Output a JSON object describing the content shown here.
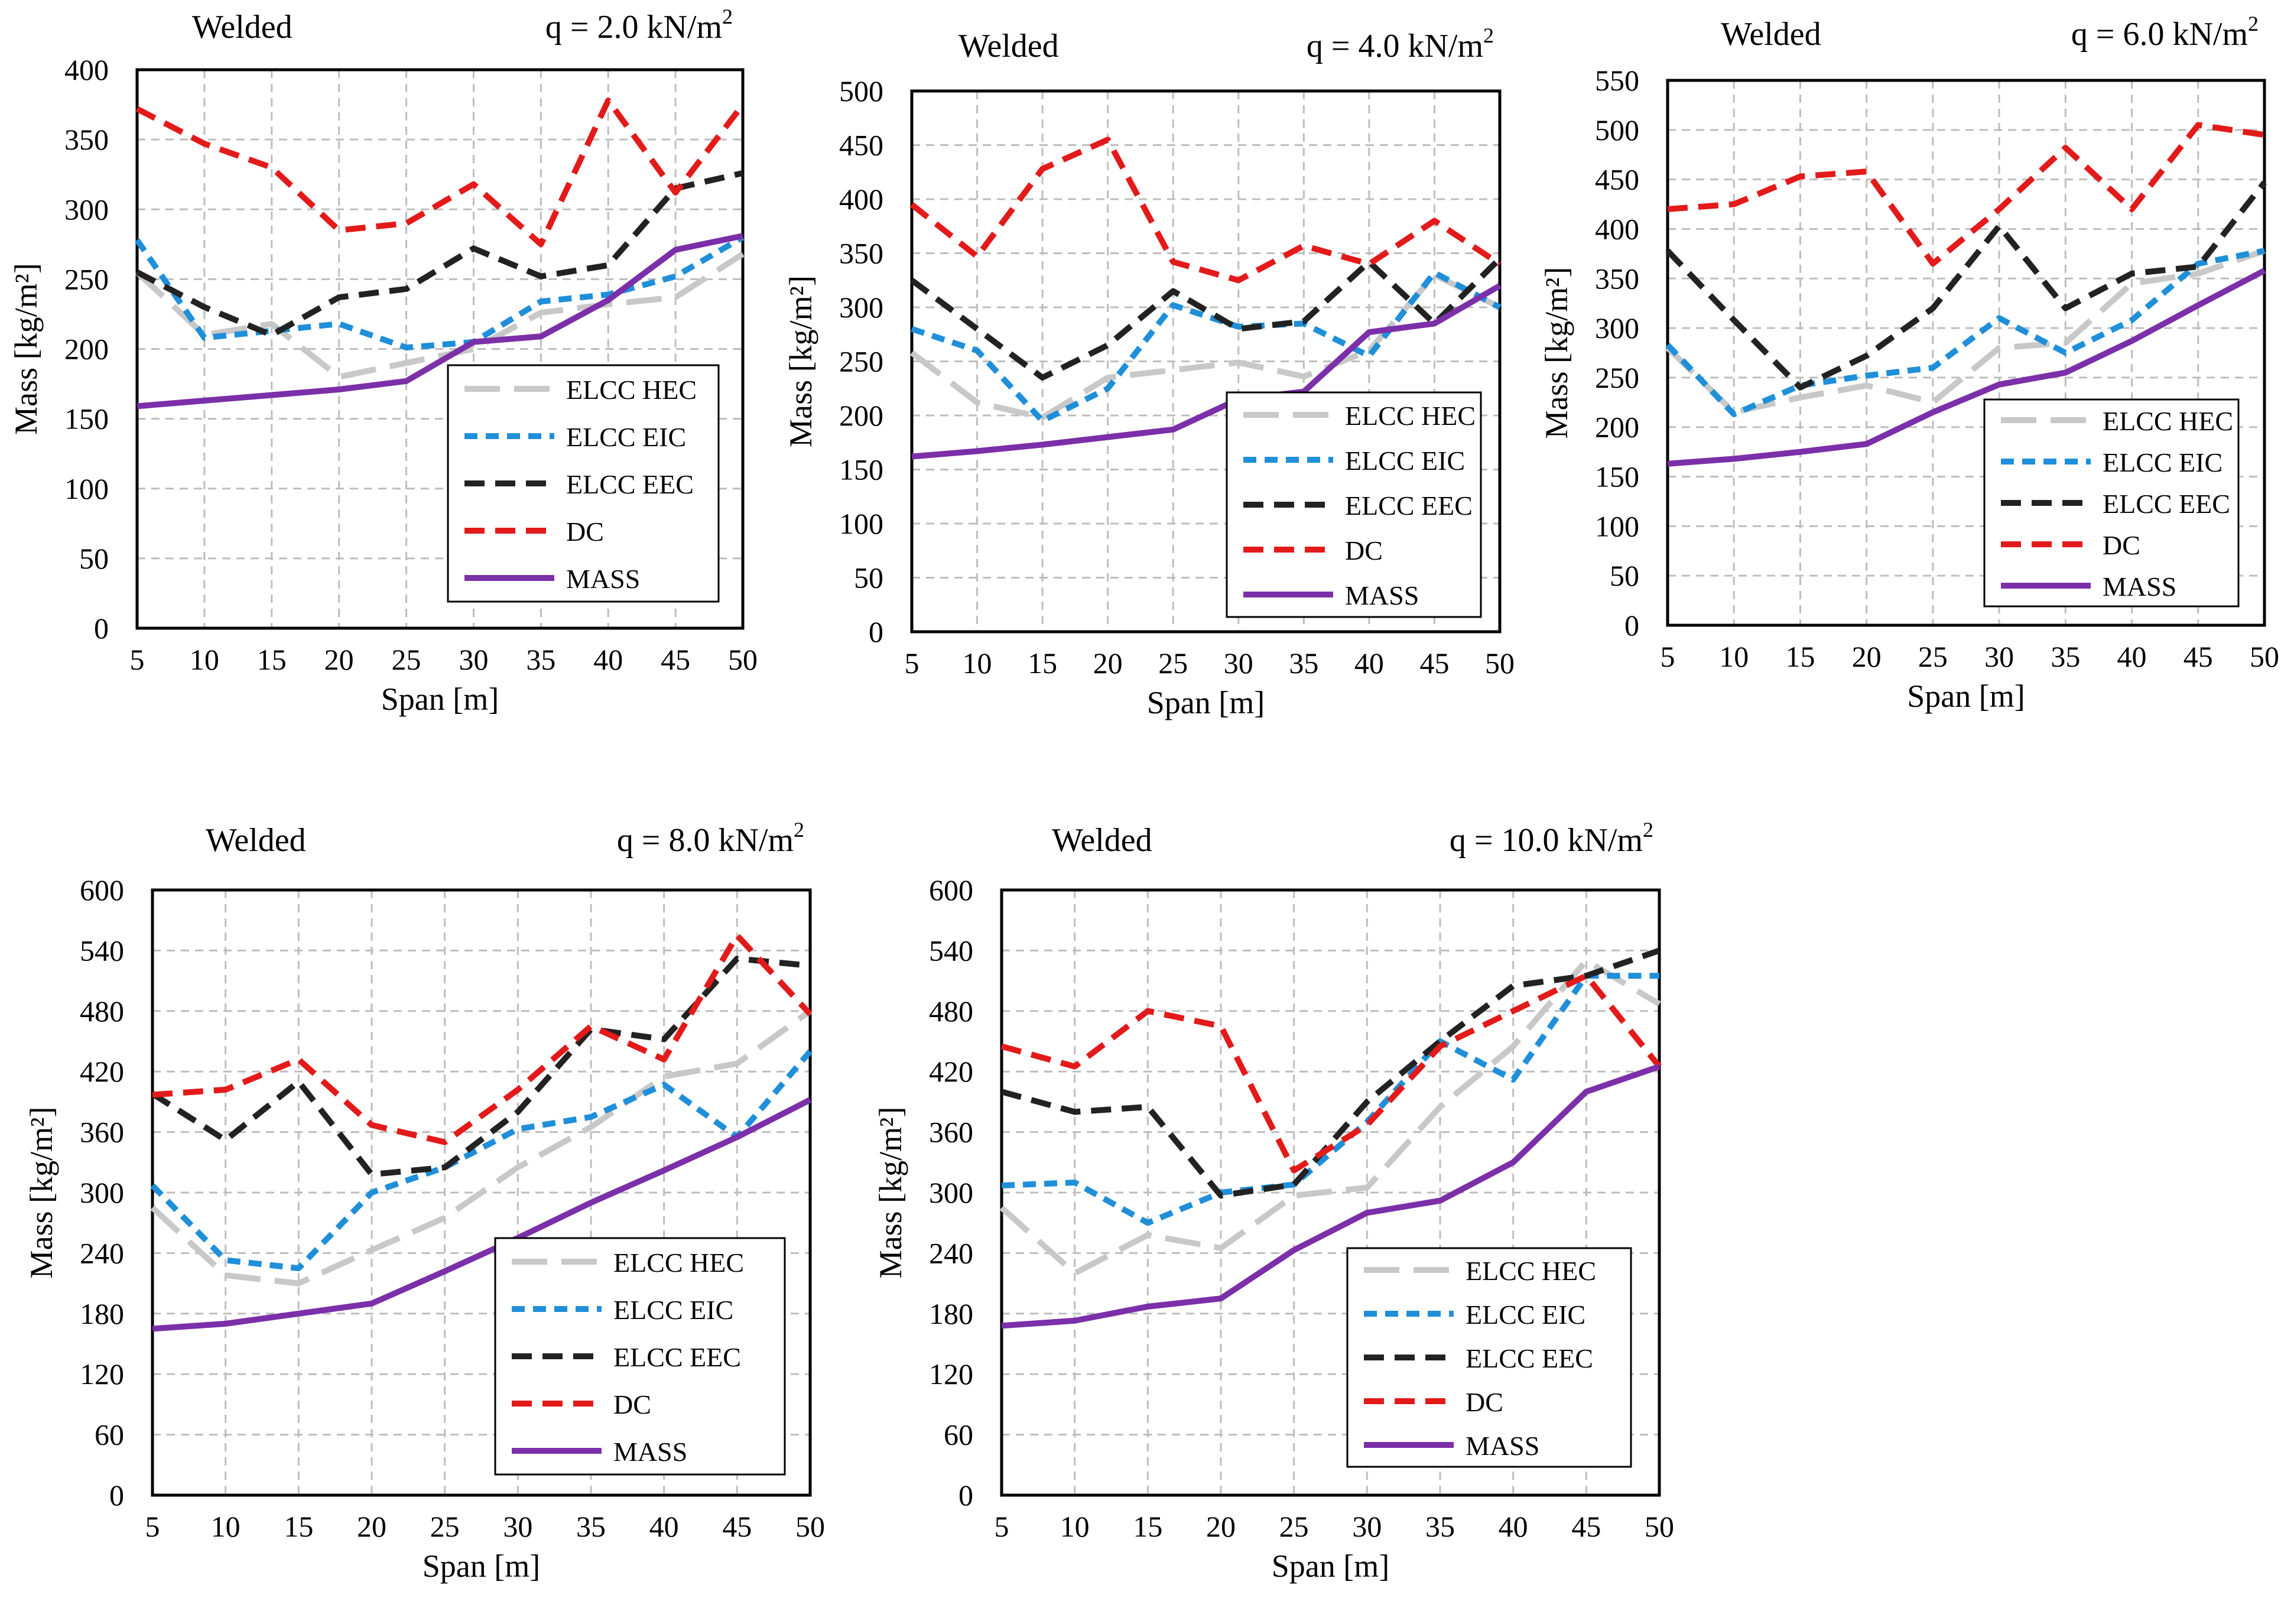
{
  "series_styles": [
    {
      "name": "ELCC HEC",
      "color": "#c8c8c8",
      "dash": "long"
    },
    {
      "name": "ELCC EIC",
      "color": "#1f8fd9",
      "dash": "short"
    },
    {
      "name": "ELCC EEC",
      "color": "#222222",
      "dash": "medium"
    },
    {
      "name": "DC",
      "color": "#e31a1a",
      "dash": "medium"
    },
    {
      "name": "MASS",
      "color": "#7b2fa8",
      "dash": "solid"
    }
  ],
  "chart_data": [
    {
      "type": "line",
      "title": "Welded",
      "load_base": "q = 2.0 kN/m",
      "load_sup": "2",
      "xlabel": "Span [m]",
      "ylabel": "Mass [kg/m²]",
      "xlim": [
        5,
        50
      ],
      "ylim": [
        0,
        400
      ],
      "x_ticks": [
        5,
        10,
        15,
        20,
        25,
        30,
        35,
        40,
        45,
        50
      ],
      "y_ticks": [
        0,
        50,
        100,
        150,
        200,
        250,
        300,
        350,
        400
      ],
      "x": [
        5,
        10,
        15,
        20,
        25,
        30,
        35,
        40,
        45,
        50
      ],
      "series": [
        {
          "name": "ELCC HEC",
          "values": [
            255,
            210,
            218,
            180,
            190,
            200,
            226,
            232,
            237,
            268
          ]
        },
        {
          "name": "ELCC EIC",
          "values": [
            278,
            208,
            213,
            218,
            201,
            205,
            234,
            239,
            252,
            280
          ]
        },
        {
          "name": "ELCC EEC",
          "values": [
            255,
            230,
            210,
            237,
            243,
            272,
            252,
            260,
            315,
            326
          ]
        },
        {
          "name": "DC",
          "values": [
            372,
            347,
            330,
            285,
            290,
            318,
            275,
            378,
            312,
            375
          ]
        },
        {
          "name": "MASS",
          "values": [
            159,
            163,
            167,
            171,
            177,
            205,
            209,
            235,
            271,
            281
          ]
        }
      ]
    },
    {
      "type": "line",
      "title": "Welded",
      "load_base": "q = 4.0 kN/m",
      "load_sup": "2",
      "xlabel": "Span [m]",
      "ylabel": "Mass [kg/m²]",
      "xlim": [
        5,
        50
      ],
      "ylim": [
        0,
        500
      ],
      "x_ticks": [
        5,
        10,
        15,
        20,
        25,
        30,
        35,
        40,
        45,
        50
      ],
      "y_ticks": [
        0,
        50,
        100,
        150,
        200,
        250,
        300,
        350,
        400,
        450,
        500
      ],
      "x": [
        5,
        10,
        15,
        20,
        25,
        30,
        35,
        40,
        45,
        50
      ],
      "series": [
        {
          "name": "ELCC HEC",
          "values": [
            258,
            212,
            198,
            235,
            242,
            249,
            236,
            260,
            330,
            300
          ]
        },
        {
          "name": "ELCC EIC",
          "values": [
            280,
            260,
            195,
            225,
            302,
            282,
            285,
            255,
            332,
            300
          ]
        },
        {
          "name": "ELCC EEC",
          "values": [
            325,
            280,
            235,
            265,
            315,
            280,
            287,
            342,
            285,
            345
          ]
        },
        {
          "name": "DC",
          "values": [
            395,
            347,
            428,
            455,
            342,
            325,
            357,
            340,
            380,
            340
          ]
        },
        {
          "name": "MASS",
          "values": [
            162,
            167,
            173,
            180,
            187,
            215,
            222,
            277,
            285,
            320
          ]
        }
      ]
    },
    {
      "type": "line",
      "title": "Welded",
      "load_base": "q = 6.0 kN/m",
      "load_sup": "2",
      "xlabel": "Span [m]",
      "ylabel": "Mass [kg/m²]",
      "xlim": [
        5,
        50
      ],
      "ylim": [
        0,
        550
      ],
      "x_ticks": [
        5,
        10,
        15,
        20,
        25,
        30,
        35,
        40,
        45,
        50
      ],
      "y_ticks": [
        0,
        50,
        100,
        150,
        200,
        250,
        300,
        350,
        400,
        450,
        500,
        550
      ],
      "x": [
        5,
        10,
        15,
        20,
        25,
        30,
        35,
        40,
        45,
        50
      ],
      "series": [
        {
          "name": "ELCC HEC",
          "values": [
            280,
            215,
            230,
            242,
            225,
            280,
            285,
            345,
            355,
            378
          ]
        },
        {
          "name": "ELCC EIC",
          "values": [
            283,
            213,
            242,
            252,
            260,
            310,
            275,
            308,
            365,
            378
          ]
        },
        {
          "name": "ELCC EEC",
          "values": [
            378,
            308,
            240,
            272,
            320,
            403,
            320,
            355,
            362,
            447
          ]
        },
        {
          "name": "DC",
          "values": [
            420,
            425,
            453,
            458,
            365,
            420,
            482,
            420,
            505,
            495
          ]
        },
        {
          "name": "MASS",
          "values": [
            163,
            168,
            175,
            183,
            215,
            243,
            255,
            287,
            323,
            358
          ]
        }
      ]
    },
    {
      "type": "line",
      "title": "Welded",
      "load_base": "q = 8.0 kN/m",
      "load_sup": "2",
      "xlabel": "Span [m]",
      "ylabel": "Mass [kg/m²]",
      "xlim": [
        5,
        50
      ],
      "ylim": [
        0,
        600
      ],
      "x_ticks": [
        5,
        10,
        15,
        20,
        25,
        30,
        35,
        40,
        45,
        50
      ],
      "y_ticks": [
        0,
        60,
        120,
        180,
        240,
        300,
        360,
        420,
        480,
        540,
        600
      ],
      "x": [
        5,
        10,
        15,
        20,
        25,
        30,
        35,
        40,
        45,
        50
      ],
      "series": [
        {
          "name": "ELCC HEC",
          "values": [
            285,
            218,
            210,
            243,
            275,
            325,
            365,
            415,
            428,
            480
          ]
        },
        {
          "name": "ELCC EIC",
          "values": [
            307,
            233,
            225,
            300,
            325,
            363,
            375,
            407,
            355,
            440
          ]
        },
        {
          "name": "ELCC EEC",
          "values": [
            398,
            352,
            410,
            318,
            325,
            380,
            462,
            452,
            532,
            525
          ]
        },
        {
          "name": "DC",
          "values": [
            397,
            402,
            432,
            367,
            350,
            402,
            465,
            432,
            555,
            477
          ]
        },
        {
          "name": "MASS",
          "values": [
            165,
            170,
            180,
            190,
            222,
            255,
            290,
            322,
            355,
            392
          ]
        }
      ]
    },
    {
      "type": "line",
      "title": "Welded",
      "load_base": "q = 10.0 kN/m",
      "load_sup": "2",
      "xlabel": "Span [m]",
      "ylabel": "Mass [kg/m²]",
      "xlim": [
        5,
        50
      ],
      "ylim": [
        0,
        600
      ],
      "x_ticks": [
        5,
        10,
        15,
        20,
        25,
        30,
        35,
        40,
        45,
        50
      ],
      "y_ticks": [
        0,
        60,
        120,
        180,
        240,
        300,
        360,
        420,
        480,
        540,
        600
      ],
      "x": [
        5,
        10,
        15,
        20,
        25,
        30,
        35,
        40,
        45,
        50
      ],
      "series": [
        {
          "name": "ELCC HEC",
          "values": [
            285,
            220,
            258,
            245,
            297,
            305,
            385,
            445,
            530,
            487
          ]
        },
        {
          "name": "ELCC EIC",
          "values": [
            307,
            310,
            270,
            300,
            308,
            370,
            450,
            412,
            515,
            515
          ]
        },
        {
          "name": "ELCC EEC",
          "values": [
            400,
            380,
            385,
            297,
            308,
            390,
            450,
            505,
            515,
            540
          ]
        },
        {
          "name": "DC",
          "values": [
            445,
            425,
            480,
            465,
            322,
            367,
            445,
            480,
            515,
            425
          ]
        },
        {
          "name": "MASS",
          "values": [
            168,
            173,
            187,
            195,
            243,
            280,
            292,
            330,
            400,
            425
          ]
        }
      ]
    }
  ]
}
